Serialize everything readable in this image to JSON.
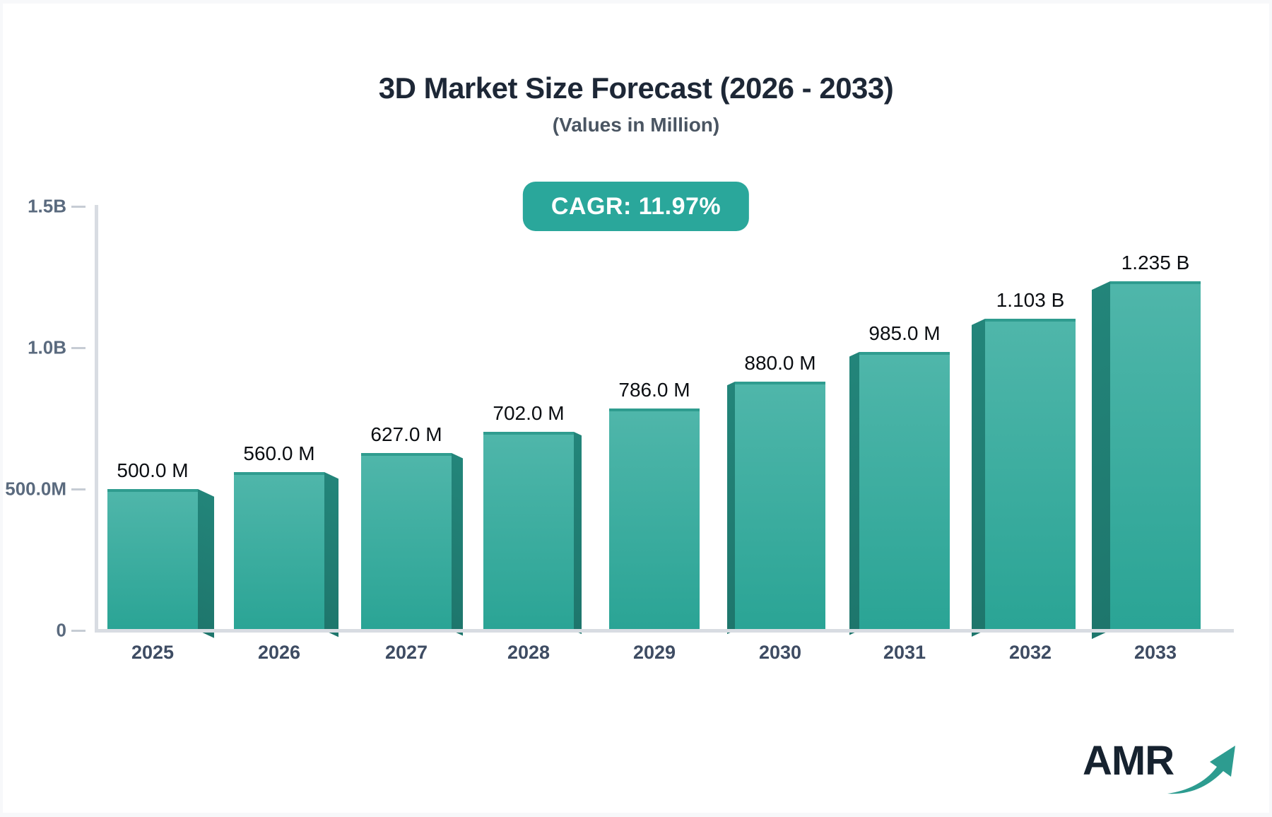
{
  "page": {
    "background": "#F7F8FA",
    "card_background": "#FFFFFF"
  },
  "header": {
    "title": "3D Market Size Forecast (2026 - 2033)",
    "subtitle": "(Values in Million)"
  },
  "badge": {
    "label": "CAGR: 11.97%"
  },
  "logo": {
    "text": "AMR"
  },
  "colors": {
    "badge_color": "#2AA79B",
    "badge_text": "#FFFFFF",
    "bar_top": "#4FB6AA",
    "bar_bottom": "#2AA495",
    "bar_side": "#1F7B71",
    "bar_top_edge": "#2F9C8F",
    "axis_line": "#D8DCE2",
    "tick": "#C6CCD4",
    "y_label": "#5A6A7E",
    "x_label": "#3E4C63",
    "value_label": "#0B0E12",
    "title": "#1D2736",
    "subtitle": "#4A5562",
    "logo_text": "#16222F",
    "logo_arrow": "#2D9C90",
    "card_background": "#FFFFFF"
  },
  "chart_data": {
    "type": "bar",
    "title": "3D Market Size Forecast (2026 - 2033)",
    "subtitle": "(Values in Million)",
    "cagr_percent": 11.97,
    "categories": [
      "2025",
      "2026",
      "2027",
      "2028",
      "2029",
      "2030",
      "2031",
      "2032",
      "2033"
    ],
    "values_millions": [
      500,
      560,
      627,
      702,
      786,
      880,
      985,
      1103,
      1235
    ],
    "value_labels": [
      "500.0 M",
      "560.0 M",
      "627.0 M",
      "702.0 M",
      "786.0 M",
      "880.0 M",
      "985.0 M",
      "1.103 B",
      "1.235 B"
    ],
    "xlabel": "",
    "ylabel": "",
    "ylim": [
      0,
      1500
    ],
    "y_ticks": [
      {
        "label": "1.5B",
        "value": 1500
      },
      {
        "label": "1.0B",
        "value": 1000
      },
      {
        "label": "500.0M",
        "value": 500
      },
      {
        "label": "0",
        "value": 0
      }
    ],
    "grid": false,
    "legend": false,
    "style": "3d-perspective-bars"
  }
}
